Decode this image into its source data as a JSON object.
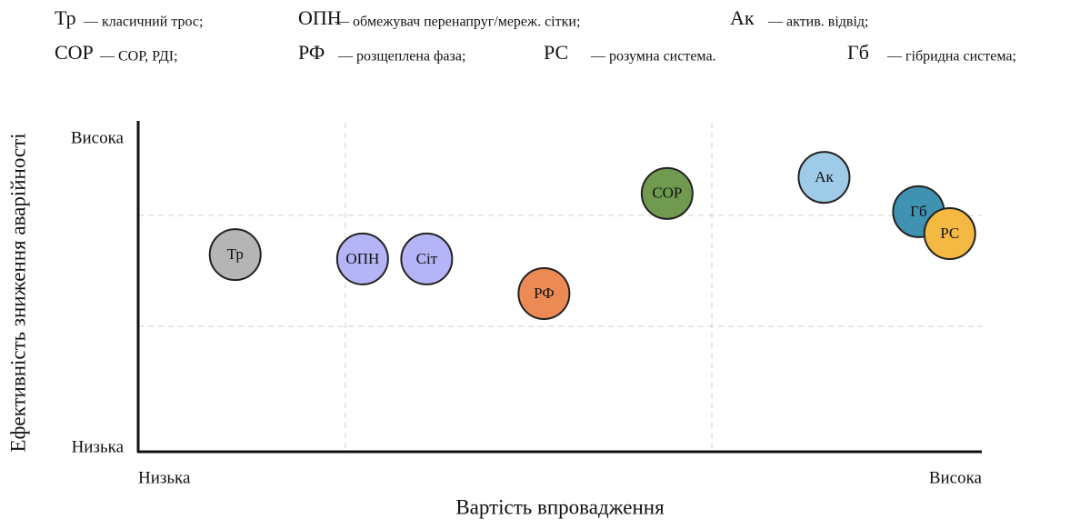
{
  "chart_data": {
    "type": "scatter",
    "xlabel": "Вартість впровадження",
    "ylabel": "Ефективність зниження аварійності",
    "xlim": [
      0,
      10
    ],
    "ylim": [
      0,
      10
    ],
    "xticks": [
      {
        "value": 0,
        "label": "Низька"
      },
      {
        "value": 10,
        "label": "Висока"
      }
    ],
    "yticks": [
      {
        "value": 0,
        "label": "Низька"
      },
      {
        "value": 10,
        "label": "Висока"
      }
    ],
    "labels": [
      "Тр",
      "ОПН",
      "Сіт",
      "РФ",
      "СОР",
      "Ак",
      "Гб",
      "РС"
    ],
    "x": [
      1.15,
      2.66,
      3.42,
      4.81,
      6.27,
      8.13,
      9.25,
      9.62
    ],
    "values": [
      6.26,
      6.12,
      6.12,
      5.0,
      8.24,
      8.76,
      7.65,
      6.94
    ],
    "colors": [
      "#b5b5b5",
      "#b4b4f6",
      "#b4b4f6",
      "#ec8a55",
      "#6f9a4f",
      "#9ecbe7",
      "#3f92b2",
      "#f4b942"
    ],
    "legend": [
      {
        "code": "Тр",
        "text": "— класичний трос;"
      },
      {
        "code": "ОПН",
        "text": "— обмежувач перенапруг/мереж. сітки;"
      },
      {
        "code": "Ак",
        "text": "— актив. відвід;"
      },
      {
        "code": "СОР",
        "text": "— СОР, РДІ;"
      },
      {
        "code": "РФ",
        "text": "— розщеплена фаза;"
      },
      {
        "code": "РС",
        "text": "— розумна система."
      },
      {
        "code": "Гб",
        "text": "— гібридна система;"
      }
    ]
  }
}
